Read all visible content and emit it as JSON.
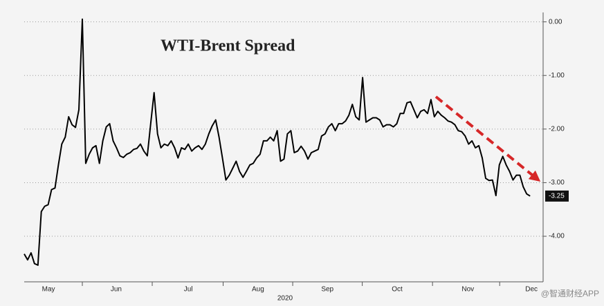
{
  "chart_data": {
    "type": "line",
    "title": "WTI-Brent Spread",
    "x_label": "2020",
    "watermark": "@智通财经APP",
    "color": "#000000",
    "grid": true,
    "values": [
      -4.33,
      -4.44,
      -4.31,
      -4.51,
      -4.54,
      -3.54,
      -3.44,
      -3.41,
      -3.13,
      -3.1,
      -2.67,
      -2.28,
      -2.15,
      -1.77,
      -1.92,
      -1.97,
      -1.64,
      0.05,
      -2.64,
      -2.47,
      -2.35,
      -2.31,
      -2.64,
      -2.22,
      -1.96,
      -1.9,
      -2.22,
      -2.35,
      -2.5,
      -2.53,
      -2.47,
      -2.44,
      -2.38,
      -2.36,
      -2.28,
      -2.41,
      -2.5,
      -1.9,
      -1.32,
      -2.09,
      -2.35,
      -2.28,
      -2.31,
      -2.22,
      -2.35,
      -2.54,
      -2.35,
      -2.38,
      -2.28,
      -2.41,
      -2.35,
      -2.31,
      -2.38,
      -2.28,
      -2.09,
      -1.94,
      -1.83,
      -2.15,
      -2.54,
      -2.95,
      -2.86,
      -2.73,
      -2.6,
      -2.79,
      -2.9,
      -2.79,
      -2.67,
      -2.64,
      -2.54,
      -2.47,
      -2.22,
      -2.22,
      -2.15,
      -2.22,
      -2.03,
      -2.6,
      -2.56,
      -2.09,
      -2.03,
      -2.44,
      -2.41,
      -2.32,
      -2.41,
      -2.56,
      -2.44,
      -2.41,
      -2.38,
      -2.13,
      -2.09,
      -1.96,
      -1.9,
      -2.03,
      -1.9,
      -1.9,
      -1.85,
      -1.74,
      -1.54,
      -1.77,
      -1.83,
      -1.04,
      -1.87,
      -1.83,
      -1.79,
      -1.79,
      -1.83,
      -1.96,
      -1.92,
      -1.92,
      -1.96,
      -1.9,
      -1.71,
      -1.71,
      -1.51,
      -1.49,
      -1.64,
      -1.79,
      -1.67,
      -1.64,
      -1.71,
      -1.45,
      -1.77,
      -1.67,
      -1.74,
      -1.79,
      -1.85,
      -1.87,
      -1.92,
      -2.03,
      -2.05,
      -2.13,
      -2.28,
      -2.22,
      -2.35,
      -2.31,
      -2.54,
      -2.92,
      -2.96,
      -2.95,
      -3.24,
      -2.67,
      -2.51,
      -2.67,
      -2.79,
      -2.95,
      -2.86,
      -2.86,
      -3.08,
      -3.21,
      -3.25
    ],
    "xlim": [
      0,
      151
    ],
    "xticks": [
      {
        "value": 7.1,
        "label": "May"
      },
      {
        "value": 26.9,
        "label": "Jun"
      },
      {
        "value": 48,
        "label": "Jul"
      },
      {
        "value": 68.4,
        "label": "Aug"
      },
      {
        "value": 88.7,
        "label": "Sep"
      },
      {
        "value": 109.1,
        "label": "Oct"
      },
      {
        "value": 129.8,
        "label": "Nov"
      },
      {
        "value": 148.4,
        "label": "Dec"
      }
    ],
    "ylim": [
      -4.85,
      0.15
    ],
    "yticks": [
      {
        "value": 0,
        "label": "0.00"
      },
      {
        "value": -1,
        "label": "-1.00"
      },
      {
        "value": -2,
        "label": "-2.00"
      },
      {
        "value": -3,
        "label": "-3.00"
      },
      {
        "value": -4,
        "label": "-4.00"
      }
    ]
  }
}
